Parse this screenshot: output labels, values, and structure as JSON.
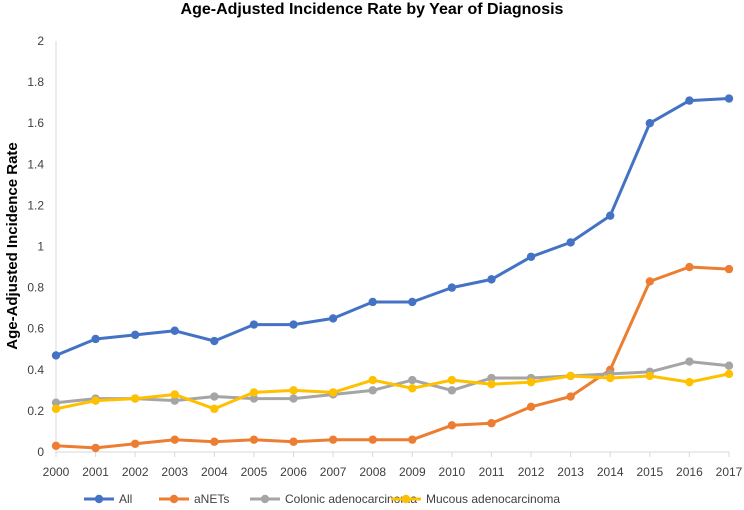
{
  "chart_data": {
    "type": "line",
    "title": "Age-Adjusted Incidence Rate by Year of Diagnosis",
    "xlabel": "",
    "ylabel": "Age-Adjusted Incidence Rate",
    "x": [
      "2000",
      "2001",
      "2002",
      "2003",
      "2004",
      "2005",
      "2006",
      "2007",
      "2008",
      "2009",
      "2010",
      "2011",
      "2012",
      "2013",
      "2014",
      "2015",
      "2016",
      "2017"
    ],
    "ylim": [
      0,
      2
    ],
    "yticks": [
      0,
      0.2,
      0.4,
      0.6,
      0.8,
      1,
      1.2,
      1.4,
      1.6,
      1.8,
      2
    ],
    "ytick_labels": [
      "0",
      "0.2",
      "0.4",
      "0.6",
      "0.8",
      "1",
      "1.2",
      "1.4",
      "1.6",
      "1.8",
      "2"
    ],
    "grid": false,
    "legend_position": "bottom",
    "series": [
      {
        "name": "All",
        "color": "#4472C4",
        "values": [
          0.47,
          0.55,
          0.57,
          0.59,
          0.54,
          0.62,
          0.62,
          0.65,
          0.73,
          0.73,
          0.8,
          0.84,
          0.95,
          1.02,
          1.15,
          1.6,
          1.71,
          1.72
        ]
      },
      {
        "name": "aNETs",
        "color": "#ED7D31",
        "values": [
          0.03,
          0.02,
          0.04,
          0.06,
          0.05,
          0.06,
          0.05,
          0.06,
          0.06,
          0.06,
          0.13,
          0.14,
          0.22,
          0.27,
          0.4,
          0.83,
          0.9,
          0.89
        ]
      },
      {
        "name": "Colonic adenocarcinoma",
        "color": "#A5A5A5",
        "values": [
          0.24,
          0.26,
          0.26,
          0.25,
          0.27,
          0.26,
          0.26,
          0.28,
          0.3,
          0.35,
          0.3,
          0.36,
          0.36,
          0.37,
          0.38,
          0.39,
          0.44,
          0.42
        ]
      },
      {
        "name": "Mucous adenocarcinoma",
        "color": "#FFC000",
        "values": [
          0.21,
          0.25,
          0.26,
          0.28,
          0.21,
          0.29,
          0.3,
          0.29,
          0.35,
          0.31,
          0.35,
          0.33,
          0.34,
          0.37,
          0.36,
          0.37,
          0.34,
          0.38
        ]
      }
    ]
  }
}
